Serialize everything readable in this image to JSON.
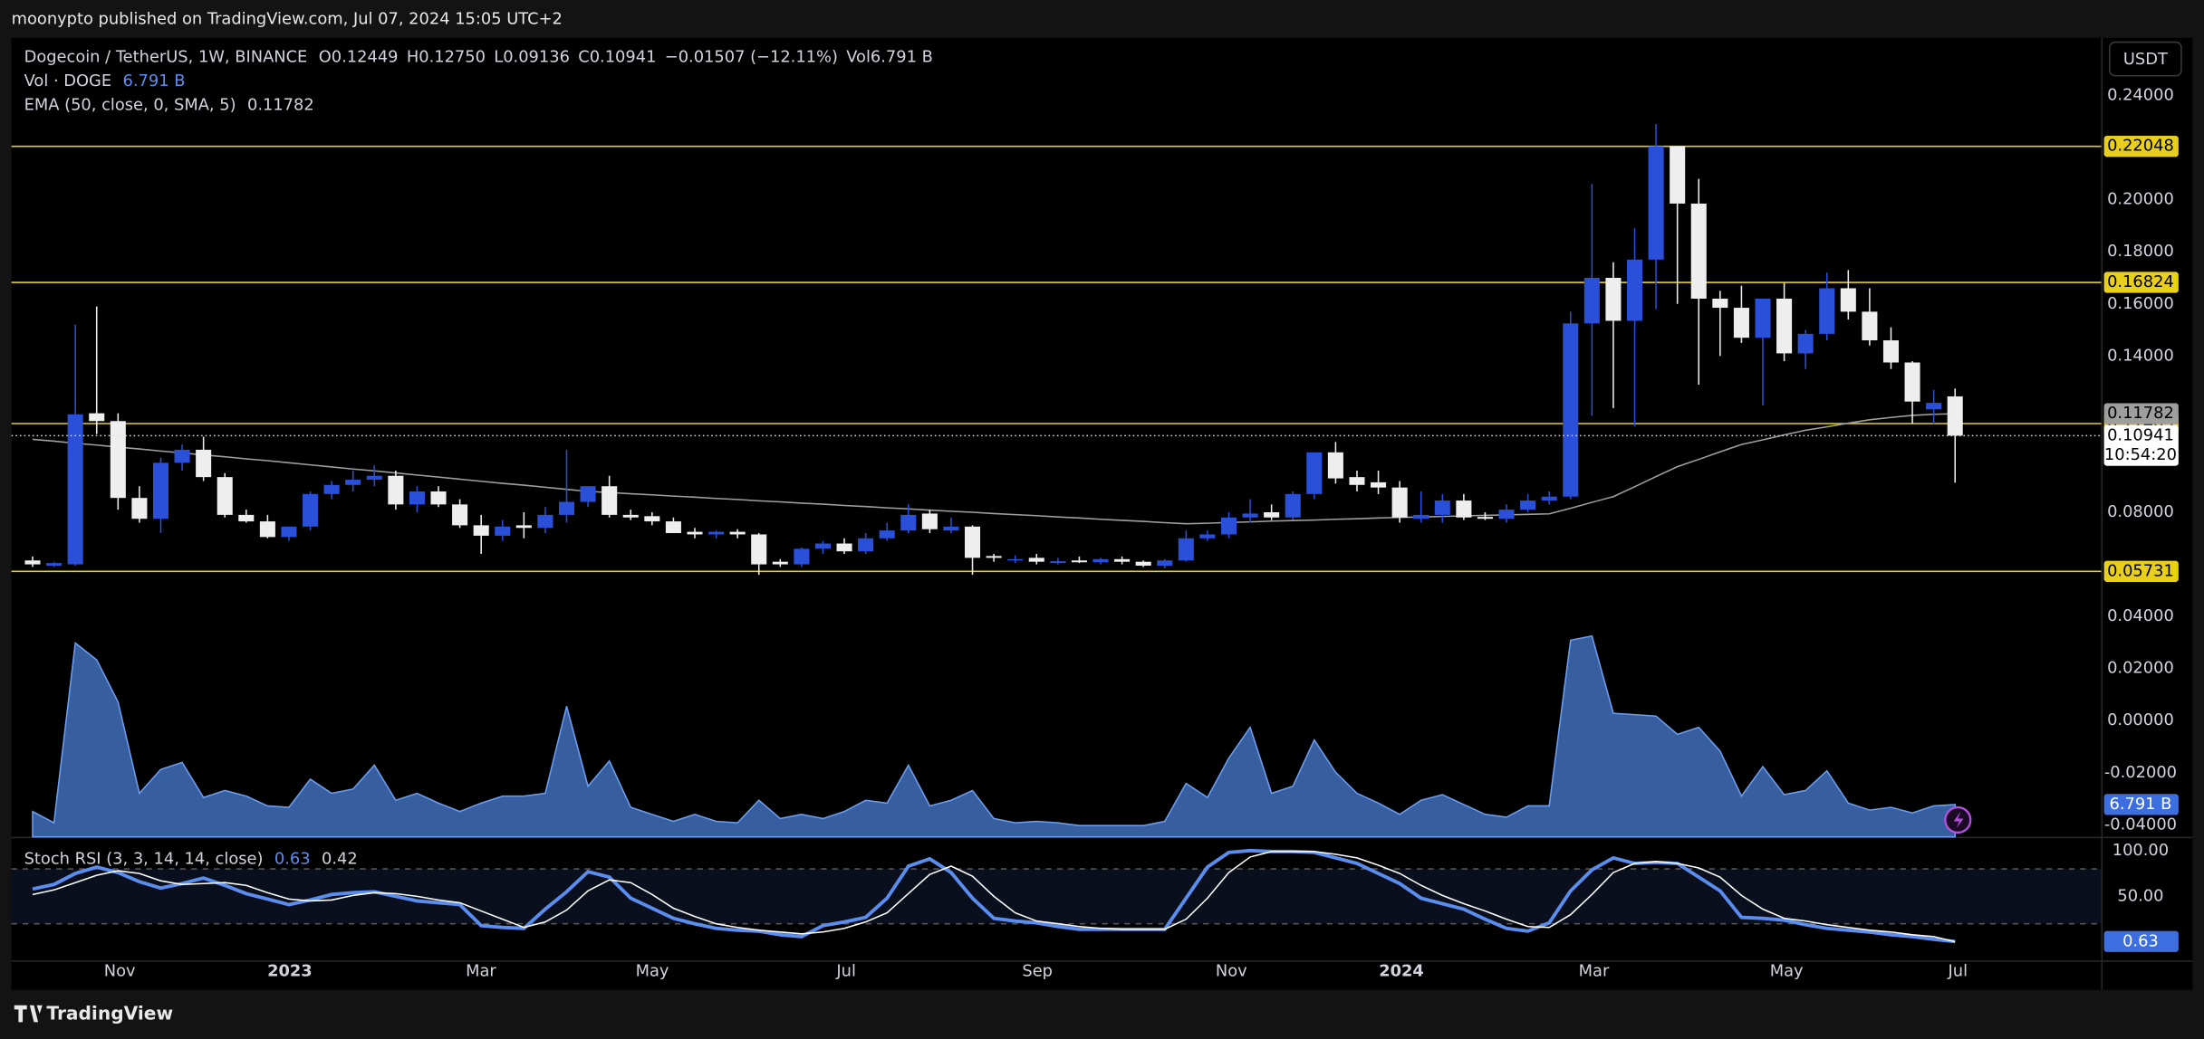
{
  "header": {
    "publisher": "moonypto published on TradingView.com, Jul 07, 2024 15:05 UTC+2",
    "brand": "TradingView",
    "currency_button": "USDT"
  },
  "chart_data": [
    {
      "type": "candlestick",
      "title": "Dogecoin / TetherUS, 1W, BINANCE",
      "legend_keys": [
        "O",
        "H",
        "L",
        "C"
      ],
      "legend_values": [
        "0.12449",
        "0.12750",
        "0.09136",
        "0.10941"
      ],
      "change": "−0.01507 (−12.11%)",
      "volume_key": "Vol",
      "up_color": "#2a4fd8",
      "down_color": "#eeeeee",
      "candles": [
        [
          0.0615,
          0.063,
          0.059,
          0.06
        ],
        [
          0.0595,
          0.061,
          0.059,
          0.0605
        ],
        [
          0.06,
          0.152,
          0.0595,
          0.1176
        ],
        [
          0.118,
          0.159,
          0.11,
          0.115
        ],
        [
          0.115,
          0.118,
          0.081,
          0.0855
        ],
        [
          0.0855,
          0.09,
          0.076,
          0.0775
        ],
        [
          0.0775,
          0.101,
          0.072,
          0.099
        ],
        [
          0.099,
          0.106,
          0.096,
          0.104
        ],
        [
          0.104,
          0.109,
          0.092,
          0.0935
        ],
        [
          0.0935,
          0.095,
          0.078,
          0.079
        ],
        [
          0.079,
          0.081,
          0.076,
          0.0765
        ],
        [
          0.0765,
          0.079,
          0.07,
          0.0705
        ],
        [
          0.0705,
          0.073,
          0.069,
          0.0745
        ],
        [
          0.0745,
          0.088,
          0.073,
          0.087
        ],
        [
          0.087,
          0.092,
          0.085,
          0.0905
        ],
        [
          0.0905,
          0.096,
          0.088,
          0.0925
        ],
        [
          0.0925,
          0.098,
          0.09,
          0.094
        ],
        [
          0.094,
          0.096,
          0.081,
          0.083
        ],
        [
          0.083,
          0.09,
          0.08,
          0.088
        ],
        [
          0.088,
          0.09,
          0.082,
          0.083
        ],
        [
          0.083,
          0.085,
          0.074,
          0.075
        ],
        [
          0.075,
          0.079,
          0.064,
          0.071
        ],
        [
          0.071,
          0.077,
          0.069,
          0.0745
        ],
        [
          0.075,
          0.08,
          0.07,
          0.074
        ],
        [
          0.074,
          0.082,
          0.072,
          0.079
        ],
        [
          0.079,
          0.104,
          0.076,
          0.084
        ],
        [
          0.084,
          0.09,
          0.082,
          0.09
        ],
        [
          0.09,
          0.094,
          0.078,
          0.079
        ],
        [
          0.079,
          0.081,
          0.077,
          0.078
        ],
        [
          0.0785,
          0.08,
          0.075,
          0.0765
        ],
        [
          0.0765,
          0.078,
          0.072,
          0.072
        ],
        [
          0.0725,
          0.074,
          0.07,
          0.0715
        ],
        [
          0.0715,
          0.073,
          0.07,
          0.0725
        ],
        [
          0.0725,
          0.0735,
          0.07,
          0.0715
        ],
        [
          0.0715,
          0.072,
          0.056,
          0.06
        ],
        [
          0.061,
          0.062,
          0.059,
          0.06
        ],
        [
          0.06,
          0.0665,
          0.059,
          0.066
        ],
        [
          0.066,
          0.069,
          0.064,
          0.068
        ],
        [
          0.068,
          0.07,
          0.064,
          0.065
        ],
        [
          0.065,
          0.072,
          0.064,
          0.07
        ],
        [
          0.07,
          0.076,
          0.069,
          0.073
        ],
        [
          0.073,
          0.083,
          0.072,
          0.079
        ],
        [
          0.0795,
          0.081,
          0.072,
          0.0735
        ],
        [
          0.073,
          0.078,
          0.072,
          0.0745
        ],
        [
          0.0745,
          0.075,
          0.056,
          0.0625
        ],
        [
          0.0632,
          0.064,
          0.061,
          0.0625
        ],
        [
          0.0615,
          0.0635,
          0.0605,
          0.062
        ],
        [
          0.0625,
          0.064,
          0.06,
          0.061
        ],
        [
          0.0605,
          0.0625,
          0.06,
          0.0612
        ],
        [
          0.0615,
          0.063,
          0.0605,
          0.0608
        ],
        [
          0.0608,
          0.0625,
          0.06,
          0.062
        ],
        [
          0.062,
          0.063,
          0.06,
          0.061
        ],
        [
          0.061,
          0.0615,
          0.059,
          0.0595
        ],
        [
          0.0595,
          0.062,
          0.0585,
          0.0615
        ],
        [
          0.0615,
          0.073,
          0.061,
          0.07
        ],
        [
          0.07,
          0.073,
          0.069,
          0.0715
        ],
        [
          0.0715,
          0.08,
          0.07,
          0.078
        ],
        [
          0.078,
          0.085,
          0.076,
          0.0795
        ],
        [
          0.08,
          0.083,
          0.077,
          0.078
        ],
        [
          0.078,
          0.088,
          0.077,
          0.087
        ],
        [
          0.087,
          0.103,
          0.085,
          0.103
        ],
        [
          0.103,
          0.107,
          0.091,
          0.093
        ],
        [
          0.0935,
          0.096,
          0.088,
          0.0905
        ],
        [
          0.0915,
          0.096,
          0.087,
          0.0895
        ],
        [
          0.0895,
          0.092,
          0.076,
          0.078
        ],
        [
          0.0775,
          0.088,
          0.076,
          0.079
        ],
        [
          0.079,
          0.087,
          0.076,
          0.0845
        ],
        [
          0.0845,
          0.087,
          0.077,
          0.078
        ],
        [
          0.0782,
          0.08,
          0.077,
          0.0775
        ],
        [
          0.0775,
          0.083,
          0.076,
          0.081
        ],
        [
          0.081,
          0.087,
          0.08,
          0.0845
        ],
        [
          0.0845,
          0.088,
          0.083,
          0.086
        ],
        [
          0.086,
          0.157,
          0.085,
          0.1525
        ],
        [
          0.1525,
          0.206,
          0.117,
          0.17
        ],
        [
          0.17,
          0.176,
          0.12,
          0.1535
        ],
        [
          0.1535,
          0.189,
          0.113,
          0.177
        ],
        [
          0.177,
          0.229,
          0.158,
          0.2205
        ],
        [
          0.2205,
          0.2205,
          0.16,
          0.1985
        ],
        [
          0.1985,
          0.208,
          0.129,
          0.162
        ],
        [
          0.162,
          0.165,
          0.14,
          0.1585
        ],
        [
          0.1585,
          0.167,
          0.145,
          0.147
        ],
        [
          0.147,
          0.162,
          0.121,
          0.162
        ],
        [
          0.162,
          0.168,
          0.138,
          0.141
        ],
        [
          0.141,
          0.15,
          0.135,
          0.1485
        ],
        [
          0.1485,
          0.172,
          0.146,
          0.166
        ],
        [
          0.166,
          0.173,
          0.154,
          0.157
        ],
        [
          0.157,
          0.166,
          0.144,
          0.146
        ],
        [
          0.146,
          0.151,
          0.135,
          0.1375
        ],
        [
          0.1375,
          0.138,
          0.114,
          0.1225
        ],
        [
          0.1195,
          0.127,
          0.114,
          0.122
        ],
        [
          0.12449,
          0.1275,
          0.09136,
          0.10941
        ]
      ],
      "ema": {
        "name": "EMA (50, close, 0, SMA, 5)",
        "color": "#a0a0a0",
        "values": [
          0.108,
          0.1073,
          0.1065,
          0.1058,
          0.105,
          0.1043,
          0.1035,
          0.1028,
          0.102,
          0.1013,
          0.1005,
          0.0998,
          0.099,
          0.0982,
          0.0974,
          0.0966,
          0.0959,
          0.0951,
          0.0943,
          0.0935,
          0.0927,
          0.0919,
          0.0911,
          0.0904,
          0.0896,
          0.0888,
          0.088,
          0.0876,
          0.0871,
          0.0867,
          0.0862,
          0.0858,
          0.0853,
          0.0849,
          0.0844,
          0.084,
          0.0835,
          0.0831,
          0.0826,
          0.0822,
          0.0817,
          0.0813,
          0.0808,
          0.0804,
          0.08,
          0.0795,
          0.0791,
          0.0787,
          0.0782,
          0.0778,
          0.0773,
          0.0769,
          0.0765,
          0.076,
          0.0756,
          0.0758,
          0.0761,
          0.0763,
          0.0766,
          0.0768,
          0.077,
          0.0773,
          0.0775,
          0.0778,
          0.078,
          0.0782,
          0.0784,
          0.0786,
          0.0788,
          0.079,
          0.0792,
          0.0794,
          0.0815,
          0.0838,
          0.086,
          0.0898,
          0.0937,
          0.0975,
          0.1003,
          0.1032,
          0.106,
          0.1078,
          0.1097,
          0.1115,
          0.1128,
          0.1142,
          0.1155,
          0.1164,
          0.1172,
          0.1176,
          0.11782
        ]
      },
      "volume": {
        "name": "Vol · DOGE",
        "color": "#4a7fd6",
        "last_label": "6.791 B",
        "values": [
          5.32,
          2.95,
          40.75,
          37.21,
          28.35,
          9.15,
          14.17,
          15.65,
          8.27,
          9.74,
          8.56,
          6.5,
          6.2,
          12.11,
          9.15,
          10.04,
          15.06,
          7.68,
          9.15,
          7.09,
          5.32,
          7.09,
          8.56,
          8.56,
          9.15,
          27.46,
          10.63,
          15.95,
          6.2,
          4.72,
          3.25,
          4.72,
          3.25,
          2.95,
          7.68,
          3.84,
          4.72,
          3.84,
          5.32,
          7.68,
          7.09,
          15.06,
          6.5,
          7.68,
          9.74,
          3.84,
          2.95,
          3.25,
          2.95,
          2.36,
          2.36,
          2.36,
          2.36,
          3.25,
          11.22,
          8.27,
          16.54,
          23.03,
          9.15,
          10.63,
          20.37,
          13.58,
          9.15,
          7.09,
          4.72,
          7.68,
          8.86,
          6.79,
          4.72,
          4.13,
          6.5,
          6.5,
          41.34,
          42.22,
          25.98,
          25.69,
          25.39,
          21.56,
          23.03,
          18.01,
          8.56,
          14.76,
          8.86,
          9.74,
          13.88,
          7.09,
          5.61,
          6.2,
          5.02,
          6.5,
          6.791
        ]
      },
      "levels": [
        0.22048,
        0.16824,
        0.11405,
        0.05731
      ],
      "level_color": "#e8cf1e",
      "countdown": "10:54:20",
      "xlim": [
        -0.99,
        96.84
      ],
      "xticks": [
        {
          "value": 4.08,
          "label": "Nov"
        },
        {
          "value": 12.04,
          "label": "2023"
        },
        {
          "value": 20.99,
          "label": "Mar"
        },
        {
          "value": 29.01,
          "label": "May"
        },
        {
          "value": 38.09,
          "label": "Jul"
        },
        {
          "value": 47.04,
          "label": "Sep"
        },
        {
          "value": 56.12,
          "label": "Nov"
        },
        {
          "value": 64.08,
          "label": "2024"
        },
        {
          "value": 73.09,
          "label": "Mar"
        },
        {
          "value": 82.11,
          "label": "May"
        },
        {
          "value": 90.13,
          "label": "Jul"
        }
      ],
      "ylim": [
        -0.0446,
        0.2551
      ],
      "yticks": [
        {
          "value": 0.24,
          "label": "0.24000"
        },
        {
          "value": 0.2,
          "label": "0.20000"
        },
        {
          "value": 0.18,
          "label": "0.18000"
        },
        {
          "value": 0.16,
          "label": "0.16000"
        },
        {
          "value": 0.14,
          "label": "0.14000"
        },
        {
          "value": 0.08,
          "label": "0.08000"
        },
        {
          "value": 0.04,
          "label": "0.04000"
        },
        {
          "value": 0.02,
          "label": "0.02000"
        },
        {
          "value": 0,
          "label": "0.00000"
        },
        {
          "value": -0.02,
          "label": "-0.02000"
        },
        {
          "value": -0.04,
          "label": "-0.04000"
        }
      ]
    },
    {
      "type": "line",
      "title": "Stoch RSI (3, 3, 14, 14, close)",
      "ylim": [
        -20,
        112
      ],
      "yticks": [
        {
          "value": 100,
          "label": "100.00"
        },
        {
          "value": 50,
          "label": "50.00"
        }
      ],
      "bands": [
        80,
        20
      ],
      "series": [
        {
          "color": "#5b8def",
          "values": [
            58,
            63,
            75,
            82,
            76,
            66,
            59,
            64,
            70,
            62,
            53,
            47,
            41,
            46,
            52,
            54,
            55,
            50,
            45,
            43,
            41,
            18,
            16,
            15,
            36,
            55,
            77,
            71,
            48,
            37,
            26,
            20,
            15,
            13,
            12,
            8,
            6,
            18,
            22,
            27,
            48,
            83,
            91,
            76,
            48,
            26,
            23,
            21,
            17,
            14,
            14,
            14,
            14,
            14,
            48,
            82,
            98,
            100,
            99,
            99,
            98,
            92,
            86,
            75,
            64,
            48,
            42,
            36,
            25,
            15,
            12,
            21,
            56,
            79,
            92,
            86,
            87,
            86,
            71,
            56,
            27,
            26,
            24,
            19,
            15,
            13,
            11,
            8,
            6,
            3,
            0.63
          ]
        },
        {
          "color": "#ffffff",
          "values": [
            52,
            57,
            65,
            73,
            78,
            75,
            67,
            63,
            64,
            65,
            62,
            54,
            47,
            45,
            46,
            51,
            54,
            53,
            50,
            46,
            43,
            34,
            25,
            16,
            22,
            35,
            56,
            68,
            65,
            52,
            37,
            28,
            20,
            16,
            13,
            11,
            9,
            11,
            15,
            22,
            32,
            53,
            74,
            83,
            72,
            50,
            32,
            23,
            20,
            17,
            15,
            14,
            14,
            14,
            25,
            48,
            76,
            93,
            99,
            99,
            99,
            96,
            92,
            84,
            75,
            62,
            51,
            42,
            34,
            25,
            17,
            16,
            30,
            52,
            76,
            86,
            88,
            86,
            81,
            71,
            51,
            36,
            26,
            23,
            19,
            16,
            13,
            11,
            8,
            6,
            0.42
          ]
        }
      ]
    }
  ]
}
